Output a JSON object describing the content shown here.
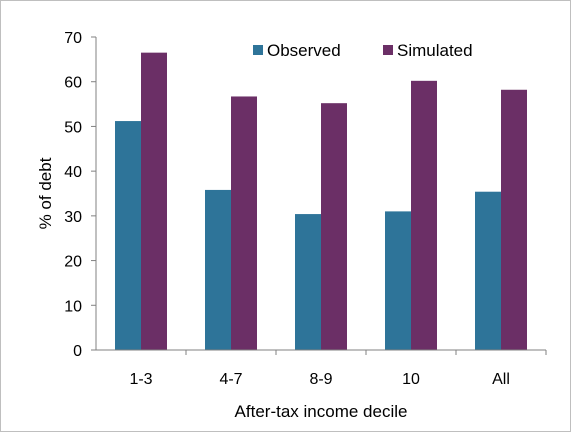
{
  "chart_data": {
    "type": "bar",
    "categories": [
      "1-3",
      "4-7",
      "8-9",
      "10",
      "All"
    ],
    "series": [
      {
        "name": "Observed",
        "values": [
          51.2,
          35.8,
          30.4,
          31.0,
          35.4
        ],
        "color": "#2e7499"
      },
      {
        "name": "Simulated",
        "values": [
          66.5,
          56.7,
          55.2,
          60.2,
          58.2
        ],
        "color": "#6b2f66"
      }
    ],
    "title": "",
    "xlabel": "After-tax income decile",
    "ylabel": "% of  debt",
    "ylim": [
      0,
      70
    ],
    "yticks": [
      "0",
      "10",
      "20",
      "30",
      "40",
      "50",
      "60",
      "70"
    ],
    "grid": false,
    "legend_position": "top"
  }
}
